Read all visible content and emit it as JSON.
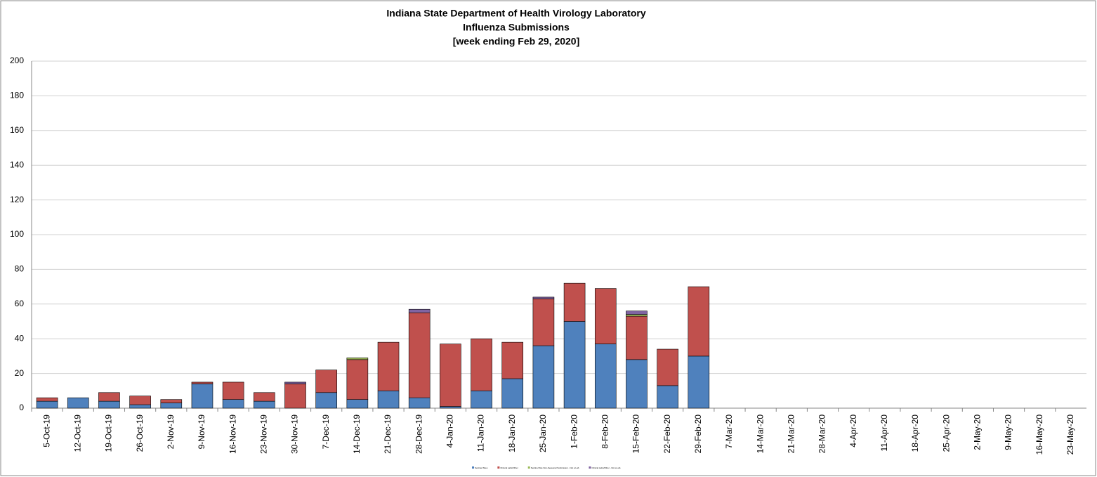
{
  "chart_data": {
    "type": "stacked_bar",
    "title": [
      "Indiana State Department of Health Virology Laboratory",
      "Influenza Submissions",
      "[week ending Feb 29, 2020]"
    ],
    "categories": [
      "5-Oct-19",
      "12-Oct-19",
      "19-Oct-19",
      "26-Oct-19",
      "2-Nov-19",
      "9-Nov-19",
      "16-Nov-19",
      "23-Nov-19",
      "30-Nov-19",
      "7-Dec-19",
      "14-Dec-19",
      "21-Dec-19",
      "28-Dec-19",
      "4-Jan-20",
      "11-Jan-20",
      "18-Jan-20",
      "25-Jan-20",
      "1-Feb-20",
      "8-Feb-20",
      "15-Feb-20",
      "22-Feb-20",
      "29-Feb-20",
      "7-Mar-20",
      "14-Mar-20",
      "21-Mar-20",
      "28-Mar-20",
      "4-Apr-20",
      "11-Apr-20",
      "18-Apr-20",
      "25-Apr-20",
      "2-May-20",
      "9-May-20",
      "16-May-20",
      "23-May-20"
    ],
    "series": [
      {
        "name": "Sentinel Sites",
        "color": "#4f81bd",
        "values": [
          4,
          6,
          4,
          2,
          3,
          14,
          5,
          4,
          0,
          9,
          5,
          10,
          6,
          1,
          10,
          17,
          36,
          50,
          37,
          28,
          13,
          30,
          null,
          null,
          null,
          null,
          null,
          null,
          null,
          null,
          null,
          null,
          null,
          null
        ]
      },
      {
        "name": "Clinical Labs/Other",
        "color": "#c0504d",
        "values": [
          2,
          0,
          5,
          5,
          2,
          1,
          10,
          5,
          14,
          13,
          23,
          28,
          49,
          36,
          30,
          21,
          27,
          22,
          32,
          25,
          21,
          40,
          null,
          null,
          null,
          null,
          null,
          null,
          null,
          null,
          null,
          null,
          null,
          null
        ]
      },
      {
        "name": "Sentinel Site Non-Seasonal Submission - Not a Lab",
        "color": "#9bbb59",
        "values": [
          0,
          0,
          0,
          0,
          0,
          0,
          0,
          0,
          0,
          0,
          1,
          0,
          0,
          0,
          0,
          0,
          0,
          0,
          0,
          1,
          0,
          0,
          null,
          null,
          null,
          null,
          null,
          null,
          null,
          null,
          null,
          null,
          null,
          null
        ]
      },
      {
        "name": "Clinical Labs/Other - Not a Lab",
        "color": "#8064a2",
        "values": [
          0,
          0,
          0,
          0,
          0,
          0,
          0,
          0,
          1,
          0,
          0,
          0,
          2,
          0,
          0,
          0,
          1,
          0,
          0,
          2,
          0,
          0,
          null,
          null,
          null,
          null,
          null,
          null,
          null,
          null,
          null,
          null,
          null,
          null
        ]
      }
    ],
    "ylim": [
      0,
      200
    ],
    "yticks": [
      0,
      20,
      40,
      60,
      80,
      100,
      120,
      140,
      160,
      180,
      200
    ],
    "grid": true
  }
}
